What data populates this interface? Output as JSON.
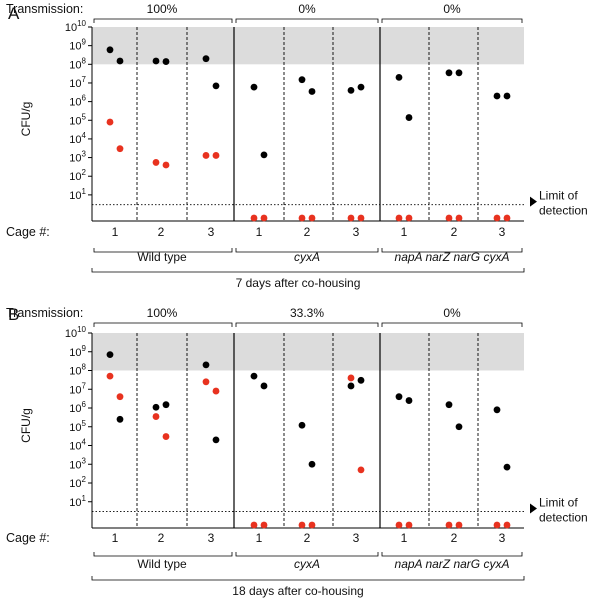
{
  "colors": {
    "mouse_a": "#000000",
    "mouse_b": "#e8321f",
    "shade": "#dcdcdc",
    "axis": "#000000"
  },
  "y_axis": {
    "label": "CFU/g",
    "scale": "log",
    "min": 1,
    "max": 10000000000,
    "ticks": [
      {
        "base": "10",
        "exp": "1",
        "value": 10
      },
      {
        "base": "10",
        "exp": "2",
        "value": 100
      },
      {
        "base": "10",
        "exp": "3",
        "value": 1000
      },
      {
        "base": "10",
        "exp": "4",
        "value": 10000
      },
      {
        "base": "10",
        "exp": "5",
        "value": 100000
      },
      {
        "base": "10",
        "exp": "6",
        "value": 1000000
      },
      {
        "base": "10",
        "exp": "7",
        "value": 10000000
      },
      {
        "base": "10",
        "exp": "8",
        "value": 100000000
      },
      {
        "base": "10",
        "exp": "9",
        "value": 1000000000
      },
      {
        "base": "10",
        "exp": "10",
        "value": 10000000000
      }
    ]
  },
  "shaded_band": [
    100000000,
    10000000000
  ],
  "limit_of_detection_value": 3,
  "limit_of_detection": [
    "Limit of",
    "detection"
  ],
  "transmission_label": "Transmission:",
  "cage_label": "Cage #:",
  "cage_numbers": [
    "1",
    "2",
    "3"
  ],
  "chart_data": [
    {
      "type": "scatter",
      "panel_letter": "A",
      "caption": "7 days after co-housing",
      "groups": [
        {
          "name": "Wild type",
          "italic": false,
          "transmission": "100%",
          "cages": [
            {
              "cage": "1",
              "mouse_a": [
                600000000,
                150000000
              ],
              "mouse_b": [
                80000,
                3000
              ]
            },
            {
              "cage": "2",
              "mouse_a": [
                150000000,
                140000000
              ],
              "mouse_b": [
                550,
                400
              ]
            },
            {
              "cage": "3",
              "mouse_a": [
                200000000,
                7000000
              ],
              "mouse_b": [
                1300,
                1300
              ]
            }
          ]
        },
        {
          "name": "cyxA",
          "italic": true,
          "transmission": "0%",
          "cages": [
            {
              "cage": "1",
              "mouse_a": [
                6000000,
                1400
              ],
              "mouse_b": [
                "LOD",
                "LOD"
              ]
            },
            {
              "cage": "2",
              "mouse_a": [
                15000000,
                3500000
              ],
              "mouse_b": [
                "LOD",
                "LOD"
              ]
            },
            {
              "cage": "3",
              "mouse_a": [
                4000000,
                6000000
              ],
              "mouse_b": [
                "LOD",
                "LOD"
              ]
            }
          ]
        },
        {
          "name": "napA narZ narG cyxA",
          "italic": true,
          "transmission": "0%",
          "cages": [
            {
              "cage": "1",
              "mouse_a": [
                20000000,
                140000
              ],
              "mouse_b": [
                "LOD",
                "LOD"
              ]
            },
            {
              "cage": "2",
              "mouse_a": [
                35000000,
                35000000
              ],
              "mouse_b": [
                "LOD",
                "LOD"
              ]
            },
            {
              "cage": "3",
              "mouse_a": [
                2000000,
                2000000
              ],
              "mouse_b": [
                "LOD",
                "LOD"
              ]
            }
          ]
        }
      ]
    },
    {
      "type": "scatter",
      "panel_letter": "B",
      "caption": "18 days after co-housing",
      "groups": [
        {
          "name": "Wild type",
          "italic": false,
          "transmission": "100%",
          "cages": [
            {
              "cage": "1",
              "mouse_a": [
                700000000,
                250000
              ],
              "mouse_b": [
                50000000,
                4000000
              ]
            },
            {
              "cage": "2",
              "mouse_a": [
                1100000,
                1500000
              ],
              "mouse_b": [
                350000,
                30000
              ]
            },
            {
              "cage": "3",
              "mouse_a": [
                200000000,
                20000
              ],
              "mouse_b": [
                25000000,
                8000000
              ]
            }
          ]
        },
        {
          "name": "cyxA",
          "italic": true,
          "transmission": "33.3%",
          "cages": [
            {
              "cage": "1",
              "mouse_a": [
                50000000,
                15000000
              ],
              "mouse_b": [
                "LOD",
                "LOD"
              ]
            },
            {
              "cage": "2",
              "mouse_a": [
                120000,
                1000
              ],
              "mouse_b": [
                "LOD",
                "LOD"
              ]
            },
            {
              "cage": "3",
              "mouse_a": [
                15000000,
                30000000
              ],
              "mouse_b": [
                40000000,
                500
              ]
            }
          ]
        },
        {
          "name": "napA narZ narG cyxA",
          "italic": true,
          "transmission": "0%",
          "cages": [
            {
              "cage": "1",
              "mouse_a": [
                4000000,
                2500000
              ],
              "mouse_b": [
                "LOD",
                "LOD"
              ]
            },
            {
              "cage": "2",
              "mouse_a": [
                1500000,
                100000
              ],
              "mouse_b": [
                "LOD",
                "LOD"
              ]
            },
            {
              "cage": "3",
              "mouse_a": [
                800000,
                700
              ],
              "mouse_b": [
                "LOD",
                "LOD"
              ]
            }
          ]
        }
      ]
    }
  ]
}
